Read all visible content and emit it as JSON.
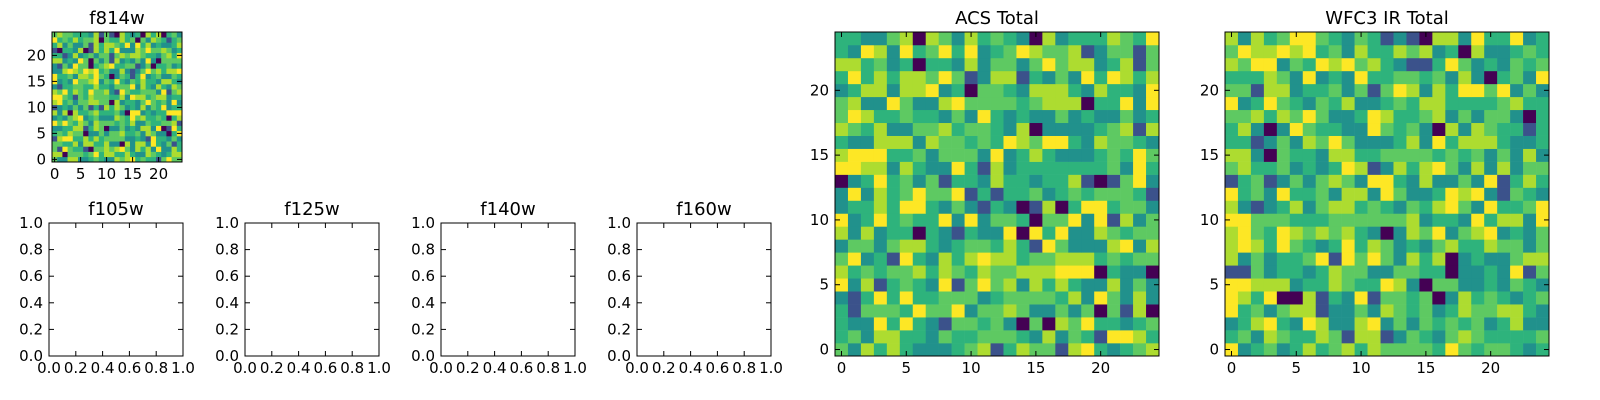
{
  "chart_data": [
    {
      "id": "f814w",
      "type": "heatmap",
      "title": "f814w",
      "grid_size": 25,
      "xticks": [
        0,
        5,
        10,
        15,
        20
      ],
      "yticks": [
        0,
        5,
        10,
        15,
        20
      ],
      "colormap": "viridis",
      "seed": 814
    },
    {
      "id": "f105w",
      "type": "empty",
      "title": "f105w",
      "xlim": [
        0,
        1
      ],
      "ylim": [
        0,
        1
      ],
      "xticks": [
        "0.0",
        "0.2",
        "0.4",
        "0.6",
        "0.8",
        "1.0"
      ],
      "yticks": [
        "0.0",
        "0.2",
        "0.4",
        "0.6",
        "0.8",
        "1.0"
      ]
    },
    {
      "id": "f125w",
      "type": "empty",
      "title": "f125w",
      "xlim": [
        0,
        1
      ],
      "ylim": [
        0,
        1
      ],
      "xticks": [
        "0.0",
        "0.2",
        "0.4",
        "0.6",
        "0.8",
        "1.0"
      ],
      "yticks": [
        "0.0",
        "0.2",
        "0.4",
        "0.6",
        "0.8",
        "1.0"
      ]
    },
    {
      "id": "f140w",
      "type": "empty",
      "title": "f140w",
      "xlim": [
        0,
        1
      ],
      "ylim": [
        0,
        1
      ],
      "xticks": [
        "0.0",
        "0.2",
        "0.4",
        "0.6",
        "0.8",
        "1.0"
      ],
      "yticks": [
        "0.0",
        "0.2",
        "0.4",
        "0.6",
        "0.8",
        "1.0"
      ]
    },
    {
      "id": "f160w",
      "type": "empty",
      "title": "f160w",
      "xlim": [
        0,
        1
      ],
      "ylim": [
        0,
        1
      ],
      "xticks": [
        "0.0",
        "0.2",
        "0.4",
        "0.6",
        "0.8",
        "1.0"
      ],
      "yticks": [
        "0.0",
        "0.2",
        "0.4",
        "0.6",
        "0.8",
        "1.0"
      ]
    },
    {
      "id": "acs-total",
      "type": "heatmap",
      "title": "ACS Total",
      "grid_size": 25,
      "xticks": [
        0,
        5,
        10,
        15,
        20
      ],
      "yticks": [
        0,
        5,
        10,
        15,
        20
      ],
      "colormap": "viridis",
      "seed": 1234
    },
    {
      "id": "wfc3-ir-total",
      "type": "heatmap",
      "title": "WFC3 IR Total",
      "grid_size": 25,
      "xticks": [
        0,
        5,
        10,
        15,
        20
      ],
      "yticks": [
        0,
        5,
        10,
        15,
        20
      ],
      "colormap": "viridis",
      "seed": 4321
    }
  ],
  "colors": {
    "viridis": [
      "#440154",
      "#3b528b",
      "#21918c",
      "#2eb37c",
      "#5ec962",
      "#addc30",
      "#fde725"
    ],
    "axis": "#000000"
  }
}
